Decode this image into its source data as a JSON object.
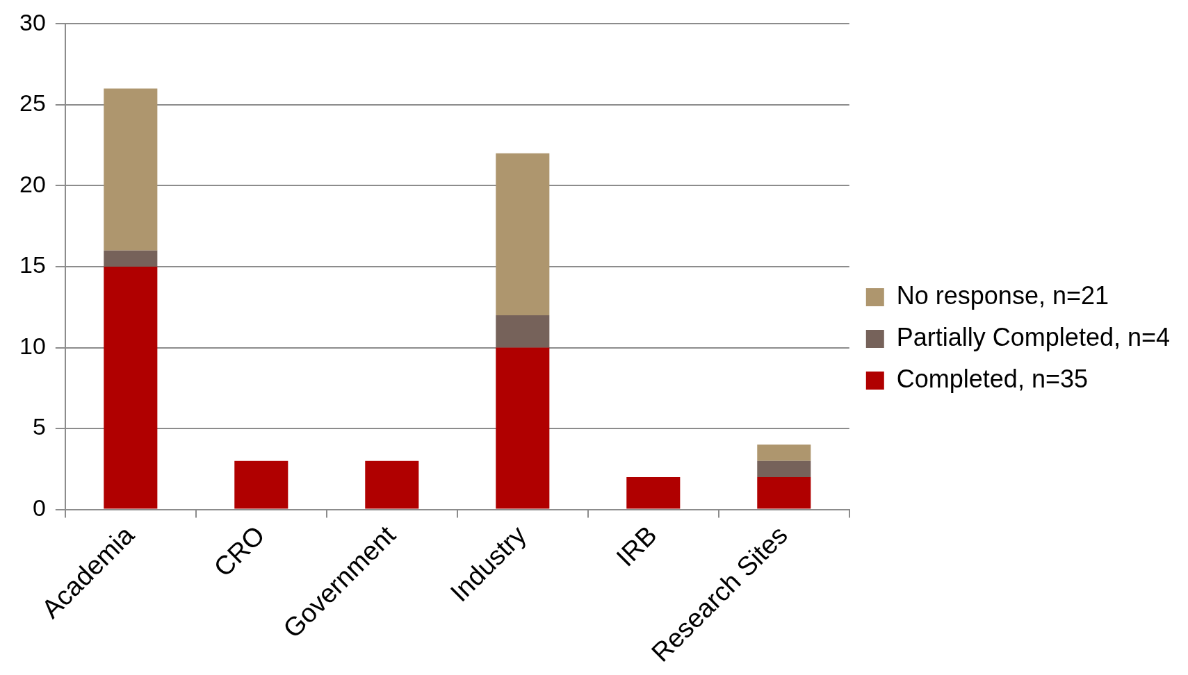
{
  "chart_data": {
    "type": "bar",
    "stacked": true,
    "grid": "y",
    "legend": "right",
    "categories": [
      "Academia",
      "CRO",
      "Government",
      "Industry",
      "IRB",
      "Research Sites"
    ],
    "series": [
      {
        "name": "Completed, n=35",
        "color": "#b00000",
        "values": [
          15,
          3,
          3,
          10,
          2,
          2
        ]
      },
      {
        "name": "Partially Completed, n=4",
        "color": "#76625a",
        "values": [
          1,
          0,
          0,
          2,
          0,
          1
        ]
      },
      {
        "name": "No response, n=21",
        "color": "#ae966e",
        "values": [
          10,
          0,
          0,
          10,
          0,
          1
        ]
      }
    ],
    "ylim": [
      0,
      30
    ],
    "yticks": [
      0,
      5,
      10,
      15,
      20,
      25,
      30
    ]
  }
}
